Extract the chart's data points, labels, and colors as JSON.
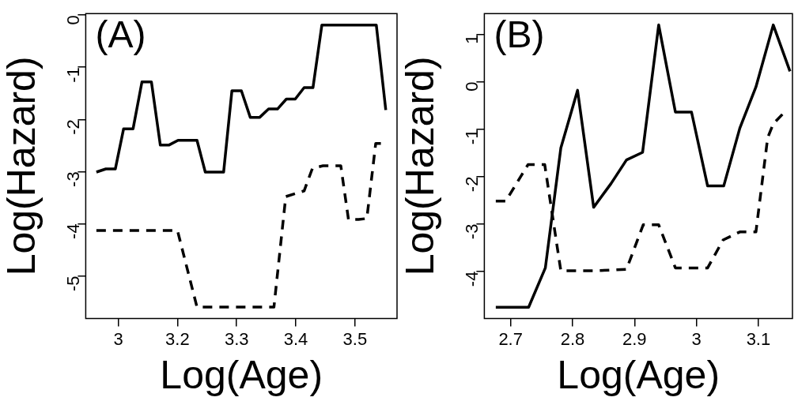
{
  "chart_data": [
    {
      "type": "line",
      "xlabel": "Log(Age)",
      "ylabel": "Log(Hazard)",
      "annotations": [
        "(A)"
      ],
      "xlim": [
        3.045,
        3.571
      ],
      "xticks": [
        {
          "value": 3.1,
          "label": "3"
        },
        3.2,
        3.3,
        3.4,
        3.5
      ],
      "ylim": [
        -5.82,
        0.03
      ],
      "yticks": [
        0,
        -1,
        -2,
        -3,
        -4,
        -5
      ],
      "grid": false,
      "legend": false,
      "marker": "none",
      "series": [
        {
          "color": "#000000",
          "line_style": "solid",
          "x": [
            3.063,
            3.079,
            3.095,
            3.109,
            3.125,
            3.14,
            3.156,
            3.171,
            3.186,
            3.201,
            3.233,
            3.247,
            3.278,
            3.292,
            3.308,
            3.323,
            3.339,
            3.354,
            3.369,
            3.384,
            3.399,
            3.414,
            3.429,
            3.444,
            3.536,
            3.552
          ],
          "values": [
            -3.01,
            -2.95,
            -2.95,
            -2.18,
            -2.18,
            -1.28,
            -1.28,
            -2.49,
            -2.49,
            -2.4,
            -2.4,
            -3.01,
            -3.01,
            -1.45,
            -1.45,
            -1.96,
            -1.96,
            -1.8,
            -1.8,
            -1.61,
            -1.61,
            -1.39,
            -1.39,
            -0.19,
            -0.19,
            -1.82
          ]
        },
        {
          "color": "#000000",
          "line_style": "dashed",
          "x": [
            3.063,
            3.2,
            3.233,
            3.363,
            3.383,
            3.414,
            3.428,
            3.446,
            3.476,
            3.489,
            3.506,
            3.52,
            3.535,
            3.549
          ],
          "values": [
            -4.13,
            -4.13,
            -5.6,
            -5.6,
            -3.48,
            -3.37,
            -2.94,
            -2.89,
            -2.89,
            -3.92,
            -3.92,
            -3.9,
            -2.46,
            -2.46
          ]
        }
      ]
    },
    {
      "type": "line",
      "xlabel": "Log(Age)",
      "ylabel": "Log(Hazard)",
      "annotations": [
        "(B)"
      ],
      "xlim": [
        2.6575,
        3.155
      ],
      "xticks": [
        2.7,
        2.8,
        2.9,
        3,
        3.1
      ],
      "ylim": [
        -5.0,
        1.44
      ],
      "yticks": [
        1,
        0,
        -1,
        -2,
        -3,
        -4
      ],
      "grid": false,
      "legend": false,
      "marker": "none",
      "series": [
        {
          "color": "#000000",
          "line_style": "solid",
          "x": [
            2.676,
            2.729,
            2.756,
            2.781,
            2.808,
            2.834,
            2.862,
            2.887,
            2.913,
            2.939,
            2.966,
            2.992,
            3.018,
            3.044,
            3.07,
            3.096,
            3.124,
            3.151
          ],
          "values": [
            -4.76,
            -4.76,
            -3.93,
            -1.4,
            -0.18,
            -2.65,
            -2.15,
            -1.65,
            -1.49,
            1.2,
            -0.64,
            -0.64,
            -2.2,
            -2.2,
            -0.98,
            -0.11,
            1.2,
            0.22
          ]
        },
        {
          "color": "#000000",
          "line_style": "dashed",
          "x": [
            2.676,
            2.692,
            2.728,
            2.755,
            2.781,
            2.808,
            2.835,
            2.887,
            2.914,
            2.939,
            2.966,
            3.018,
            3.043,
            3.07,
            3.096,
            3.115,
            3.124,
            3.14
          ],
          "values": [
            -2.52,
            -2.52,
            -1.75,
            -1.75,
            -3.99,
            -3.99,
            -3.99,
            -3.96,
            -3.02,
            -3.02,
            -3.93,
            -3.93,
            -3.34,
            -3.17,
            -3.17,
            -1.18,
            -0.89,
            -0.67
          ]
        }
      ]
    }
  ]
}
